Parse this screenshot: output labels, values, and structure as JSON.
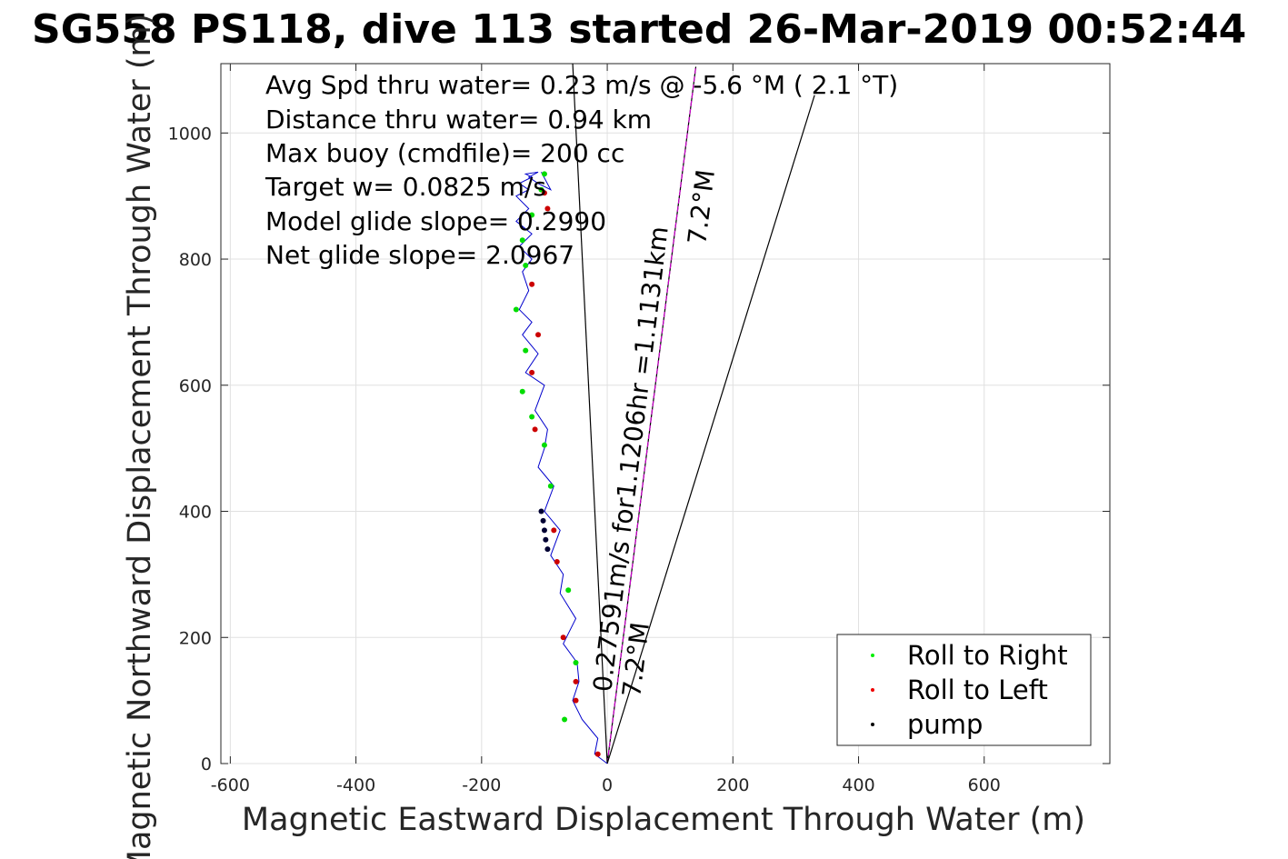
{
  "chart_data": {
    "type": "line",
    "title": "SG558 PS118, dive 113 started 26-Mar-2019 00:52:44",
    "xlabel": "Magnetic Eastward Displacement Through Water (m)",
    "ylabel": "Magnetic Northward Displacement Through Water (m)",
    "xlim": [
      -615,
      800
    ],
    "ylim": [
      0,
      1110
    ],
    "xticks": [
      -600,
      -400,
      -200,
      0,
      200,
      400,
      600
    ],
    "yticks": [
      0,
      200,
      400,
      600,
      800,
      1000
    ],
    "grid": true,
    "legend_position": "bottom-right",
    "annotations": [
      "Avg Spd thru water=  0.23 m/s @  -5.6 °M (  2.1 °T)",
      "Distance thru water=  0.94 km",
      "Max buoy (cmdfile)= 200 cc",
      "Target w= 0.0825 m/s",
      "Model glide slope= 0.2990",
      "Net glide slope= 2.0967"
    ],
    "current_label": "0.27591m/s for1.1206hr =1.1131km",
    "heading_label": "7.2°M",
    "track_label": "7.2°M",
    "series": [
      {
        "name": "track",
        "color": "#0000cc",
        "x": [
          0,
          -20,
          -15,
          -40,
          -55,
          -45,
          -48,
          -70,
          -50,
          -75,
          -70,
          -90,
          -75,
          -100,
          -85,
          -110,
          -100,
          -95,
          -115,
          -100,
          -130,
          -110,
          -135,
          -120,
          -140,
          -125,
          -135,
          -120,
          -140,
          -120,
          -145,
          -125,
          -145,
          -125,
          -140,
          -120,
          -130,
          -110,
          -125,
          -110,
          -90,
          -105
        ],
        "y": [
          0,
          15,
          40,
          70,
          100,
          130,
          160,
          190,
          230,
          270,
          300,
          330,
          370,
          400,
          440,
          470,
          500,
          530,
          560,
          600,
          620,
          650,
          680,
          700,
          720,
          750,
          780,
          800,
          820,
          840,
          860,
          880,
          900,
          910,
          920,
          930,
          935,
          938,
          930,
          920,
          910,
          938
        ]
      }
    ],
    "lines": [
      {
        "name": "current vector",
        "color": "#000000",
        "x": [
          0,
          141
        ],
        "y": [
          0,
          1105
        ]
      },
      {
        "name": "glide track",
        "color": "#cc00cc",
        "x": [
          0,
          141
        ],
        "y": [
          0,
          1105
        ]
      },
      {
        "name": "left bound",
        "color": "#000000",
        "x": [
          0,
          -55
        ],
        "y": [
          0,
          1110
        ]
      },
      {
        "name": "right bound",
        "color": "#000000",
        "x": [
          0,
          330
        ],
        "y": [
          0,
          1060
        ]
      }
    ],
    "points": [
      {
        "name": "Roll to Right",
        "color": "#00dd00",
        "x": [
          -68,
          -50,
          -62,
          -90,
          -100,
          -120,
          -135,
          -130,
          -145,
          -130,
          -135,
          -120,
          -105,
          -100
        ],
        "y": [
          70,
          160,
          275,
          440,
          505,
          550,
          590,
          655,
          720,
          790,
          830,
          870,
          910,
          935
        ]
      },
      {
        "name": "Roll to Left",
        "color": "#cc0000",
        "x": [
          -15,
          -50,
          -50,
          -70,
          -80,
          -85,
          -115,
          -120,
          -110,
          -120,
          -95,
          -100
        ],
        "y": [
          15,
          100,
          130,
          200,
          320,
          370,
          530,
          620,
          680,
          760,
          880,
          905
        ]
      },
      {
        "name": "pump",
        "color": "#000033",
        "x": [
          -105,
          -102,
          -100,
          -98,
          -95
        ],
        "y": [
          400,
          385,
          370,
          355,
          340
        ]
      }
    ]
  },
  "legend": {
    "roll_right": "Roll to Right",
    "roll_left": "Roll to Left",
    "pump": "pump",
    "roll_right_color": "#00ee00",
    "roll_left_color": "#ee0000",
    "pump_color": "#000000"
  }
}
